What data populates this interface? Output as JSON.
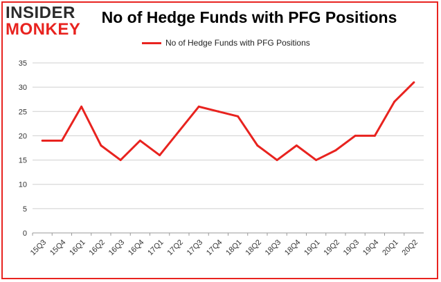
{
  "logo": {
    "line1": "INSIDER",
    "line2": "MONKEY"
  },
  "colors": {
    "line": "#e8231f",
    "grid": "#cfcfcf",
    "frame": "#e8231f"
  },
  "chart_data": {
    "type": "line",
    "title": "No of Hedge Funds with PFG Positions",
    "legend": "top-center",
    "categories": [
      "15Q3",
      "15Q4",
      "16Q1",
      "16Q2",
      "16Q3",
      "16Q4",
      "17Q1",
      "17Q2",
      "17Q3",
      "17Q4",
      "18Q1",
      "18Q2",
      "18Q3",
      "18Q4",
      "19Q1",
      "19Q2",
      "19Q3",
      "19Q4",
      "20Q1",
      "20Q2"
    ],
    "series": [
      {
        "name": "No of Hedge Funds with PFG Positions",
        "values": [
          19,
          19,
          26,
          18,
          15,
          19,
          16,
          21,
          26,
          25,
          24,
          18,
          15,
          18,
          15,
          17,
          20,
          20,
          27,
          31
        ]
      }
    ],
    "ylim": [
      0,
      35
    ],
    "yticks": [
      0,
      5,
      10,
      15,
      20,
      25,
      30,
      35
    ],
    "grid": true
  }
}
